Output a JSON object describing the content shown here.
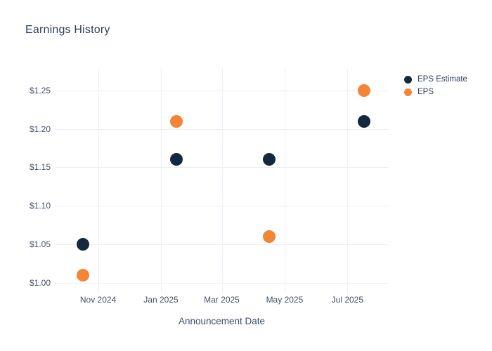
{
  "chart_data": {
    "type": "scatter",
    "title": "Earnings History",
    "xlabel": "Announcement Date",
    "ylabel": "",
    "grid": true,
    "legend_position": "outside-top-right",
    "background_color": "#ffffff",
    "gridline_color": "#ebeef6",
    "xlim": [
      "2024-09-20",
      "2025-08-10"
    ],
    "ylim": [
      0.987,
      1.278
    ],
    "x_ticks": [
      {
        "value": "2024-11-01",
        "label": "Nov 2024"
      },
      {
        "value": "2025-01-01",
        "label": "Jan 2025"
      },
      {
        "value": "2025-03-01",
        "label": "Mar 2025"
      },
      {
        "value": "2025-05-01",
        "label": "May 2025"
      },
      {
        "value": "2025-07-01",
        "label": "Jul 2025"
      }
    ],
    "y_ticks": [
      {
        "value": 1.0,
        "label": "$1.00"
      },
      {
        "value": 1.05,
        "label": "$1.05"
      },
      {
        "value": 1.1,
        "label": "$1.10"
      },
      {
        "value": 1.15,
        "label": "$1.15"
      },
      {
        "value": 1.2,
        "label": "$1.20"
      },
      {
        "value": 1.25,
        "label": "$1.25"
      }
    ],
    "series": [
      {
        "name": "EPS Estimate",
        "color": "#16283e",
        "marker": "circle",
        "points": [
          {
            "x": "2024-10-17",
            "y": 1.05
          },
          {
            "x": "2025-01-16",
            "y": 1.16
          },
          {
            "x": "2025-04-16",
            "y": 1.16
          },
          {
            "x": "2025-07-17",
            "y": 1.21
          }
        ]
      },
      {
        "name": "EPS",
        "color": "#f28536",
        "marker": "circle",
        "points": [
          {
            "x": "2024-10-17",
            "y": 1.01
          },
          {
            "x": "2025-01-16",
            "y": 1.21
          },
          {
            "x": "2025-04-16",
            "y": 1.06
          },
          {
            "x": "2025-07-17",
            "y": 1.25
          }
        ]
      }
    ]
  }
}
